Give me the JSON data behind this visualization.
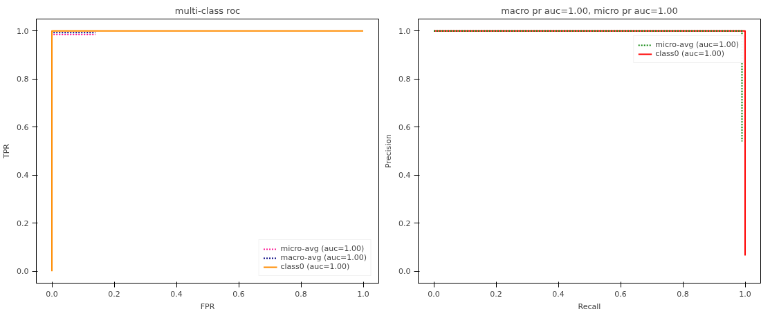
{
  "chart_data": [
    {
      "type": "line",
      "title": "multi-class roc",
      "xlabel": "FPR",
      "ylabel": "TPR",
      "xlim": [
        -0.05,
        1.05
      ],
      "ylim": [
        -0.05,
        1.05
      ],
      "xticks": [
        {
          "value": 0,
          "label": "0.0"
        },
        {
          "value": 0.2,
          "label": "0.2"
        },
        {
          "value": 0.4,
          "label": "0.4"
        },
        {
          "value": 0.6,
          "label": "0.6"
        },
        {
          "value": 0.8,
          "label": "0.8"
        },
        {
          "value": 1,
          "label": "1.0"
        }
      ],
      "yticks": [
        {
          "value": 0,
          "label": "0.0"
        },
        {
          "value": 0.2,
          "label": "0.2"
        },
        {
          "value": 0.4,
          "label": "0.4"
        },
        {
          "value": 0.6,
          "label": "0.6"
        },
        {
          "value": 0.8,
          "label": "0.8"
        },
        {
          "value": 1,
          "label": "1.0"
        }
      ],
      "grid": false,
      "legend": "bottom right",
      "series": [
        {
          "name": "micro-avg (auc=1.00)",
          "color": "#ff1493",
          "line_style": "dotted",
          "x": [
            0.005,
            0.14
          ],
          "values": [
            0.985,
            0.985
          ]
        },
        {
          "name": "macro-avg (auc=1.00)",
          "color": "#000080",
          "line_style": "dotted",
          "x": [
            0.005,
            0.14
          ],
          "values": [
            0.993,
            0.993
          ]
        },
        {
          "name": "class0 (auc=1.00)",
          "color": "#ff8c00",
          "line_style": "solid",
          "x": [
            0,
            0,
            1
          ],
          "values": [
            0,
            1,
            1
          ]
        }
      ]
    },
    {
      "type": "line",
      "title": "macro pr auc=1.00, micro pr auc=1.00",
      "xlabel": "Recall",
      "ylabel": "Precision",
      "xlim": [
        -0.05,
        1.05
      ],
      "ylim": [
        -0.05,
        1.05
      ],
      "xticks": [
        {
          "value": 0,
          "label": "0.0"
        },
        {
          "value": 0.2,
          "label": "0.2"
        },
        {
          "value": 0.4,
          "label": "0.4"
        },
        {
          "value": 0.6,
          "label": "0.6"
        },
        {
          "value": 0.8,
          "label": "0.8"
        },
        {
          "value": 1,
          "label": "1.0"
        }
      ],
      "yticks": [
        {
          "value": 0,
          "label": "0.0"
        },
        {
          "value": 0.2,
          "label": "0.2"
        },
        {
          "value": 0.4,
          "label": "0.4"
        },
        {
          "value": 0.6,
          "label": "0.6"
        },
        {
          "value": 0.8,
          "label": "0.8"
        },
        {
          "value": 1,
          "label": "1.0"
        }
      ],
      "grid": false,
      "legend": "top right",
      "series": [
        {
          "name": "micro-avg (auc=1.00)",
          "color": "#008000",
          "line_style": "dotted",
          "x": [
            0,
            0.99,
            0.99
          ],
          "values": [
            1,
            1,
            0.54
          ]
        },
        {
          "name": "class0 (auc=1.00)",
          "color": "#ff0000",
          "line_style": "solid",
          "x": [
            0,
            1,
            1
          ],
          "values": [
            1,
            1,
            0.065
          ]
        }
      ]
    }
  ]
}
